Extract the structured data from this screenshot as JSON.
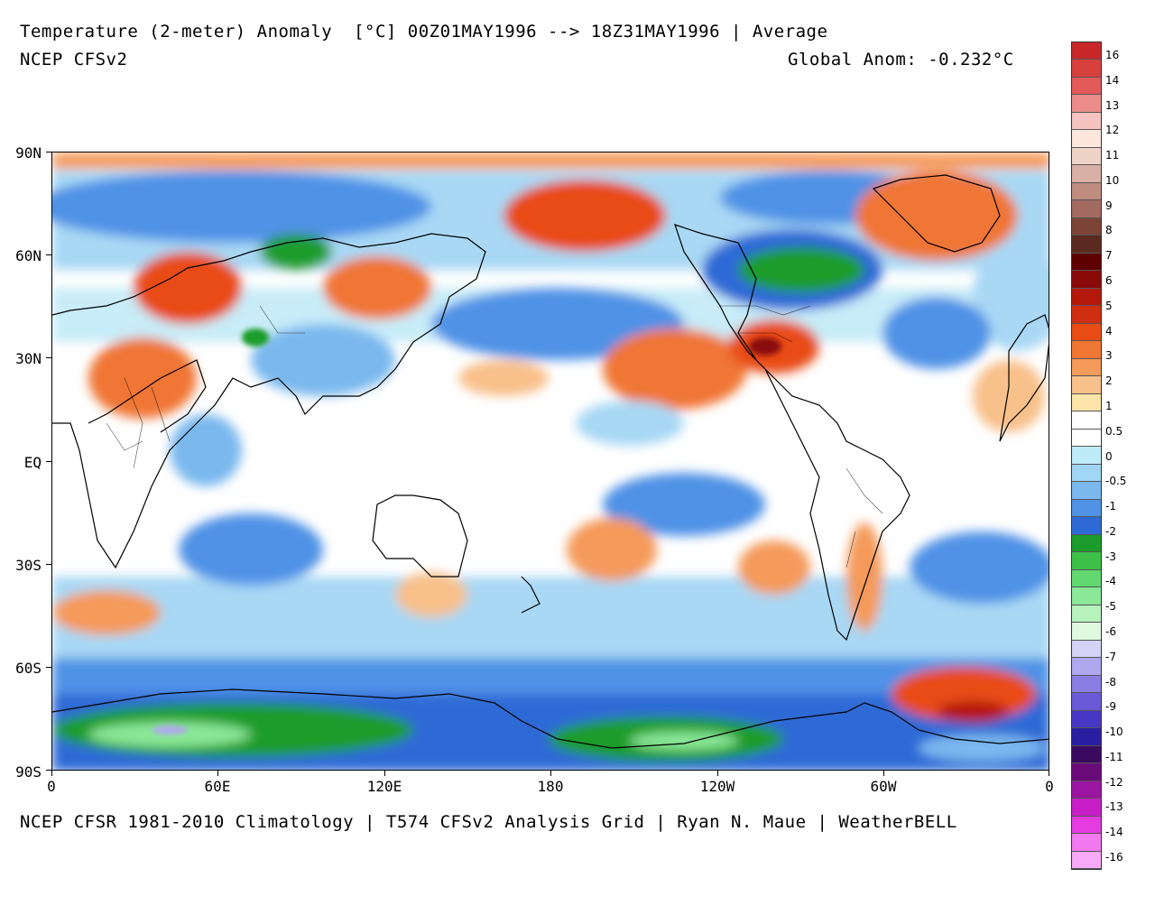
{
  "header": {
    "title": "Temperature (2-meter) Anomaly  [°C] 00Z01MAY1996 --> 18Z31MAY1996 | Average",
    "model": "NCEP CFSv2",
    "global_anom": "Global Anom: -0.232°C"
  },
  "footer": "NCEP CFSR 1981-2010 Climatology | T574 CFSv2 Analysis Grid | Ryan N. Maue | WeatherBELL",
  "axes": {
    "lat_labels": [
      "90N",
      "60N",
      "30N",
      "EQ",
      "30S",
      "60S",
      "90S"
    ],
    "lon_labels": [
      "0",
      "60E",
      "120E",
      "180",
      "120W",
      "60W",
      "0"
    ]
  },
  "colorbar": {
    "labels": [
      "16",
      "14",
      "13",
      "12",
      "11",
      "10",
      "9",
      "8",
      "7",
      "6",
      "5",
      "4",
      "3",
      "2",
      "1",
      "0.5",
      "0",
      "-0.5",
      "-1",
      "-2",
      "-3",
      "-4",
      "-5",
      "-6",
      "-7",
      "-8",
      "-9",
      "-10",
      "-11",
      "-12",
      "-13",
      "-14",
      "-16"
    ],
    "colors": [
      "#c8282a",
      "#d8403e",
      "#e25a5a",
      "#ec8c8a",
      "#f6c4c0",
      "#fde6dc",
      "#eed3c8",
      "#d8b0a6",
      "#bf8c80",
      "#a26a60",
      "#7c4436",
      "#5a2a20",
      "#5e0000",
      "#8a0a0a",
      "#b41808",
      "#d02e10",
      "#e84c14",
      "#f07634",
      "#f49a5a",
      "#f8c08a",
      "#fde4a8",
      "#ffffff",
      "#ffffff",
      "#bfeaf8",
      "#a0d6f4",
      "#7ab8ee",
      "#4f92e6",
      "#2e6ad6",
      "#1c9c2c",
      "#3cc048",
      "#62d870",
      "#8ae898",
      "#b8f2bc",
      "#e0f8e0",
      "#d6d2f6",
      "#b0a8ee",
      "#8a7ee4",
      "#6a5ad8",
      "#4638c4",
      "#2a1ea2",
      "#3a0a60",
      "#6a0a78",
      "#9c14a2",
      "#c81ec8",
      "#e43ce0",
      "#f27af0",
      "#f8aaf8"
    ],
    "accent_warm": "#e84c14",
    "accent_cool": "#2e6ad6",
    "land_ice_green": "#1c9c2c"
  }
}
